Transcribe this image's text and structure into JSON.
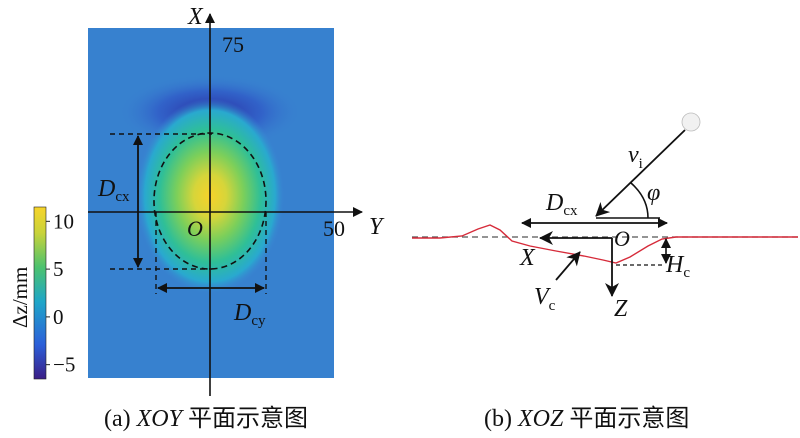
{
  "panel_a": {
    "axis_x_label": "X",
    "axis_y_label": "Y",
    "origin_label": "O",
    "tick_x": "75",
    "tick_y": "50",
    "dim_cx_main": "D",
    "dim_cx_sub": "cx",
    "dim_cy_main": "D",
    "dim_cy_sub": "cy",
    "colorbar": {
      "label": "Δz/mm",
      "ticks": [
        "10",
        "5",
        "0",
        "−5"
      ],
      "values": [
        10,
        5,
        0,
        -5
      ],
      "min": -6.5,
      "max": 11.5,
      "colors": [
        "#3a1e86",
        "#2c5fd9",
        "#1fa6c8",
        "#4cc26e",
        "#c9d33a",
        "#f7d42a"
      ]
    },
    "caption_prefix": "(a) ",
    "caption_italic": "XOY",
    "caption_suffix": " 平面示意图"
  },
  "panel_b": {
    "vi_main": "v",
    "vi_sub": "i",
    "phi_label": "φ",
    "dcx_main": "D",
    "dcx_sub": "cx",
    "origin_label": "O",
    "x_label": "X",
    "z_label": "Z",
    "hc_main": "H",
    "hc_sub": "c",
    "vc_main": "V",
    "vc_sub": "c",
    "caption_prefix": "(b) ",
    "caption_italic": "XOZ",
    "caption_suffix": " 平面示意图"
  },
  "colors": {
    "field_bg": "#3a86d2",
    "profile_line": "#d62b3a",
    "ink": "#111111"
  }
}
